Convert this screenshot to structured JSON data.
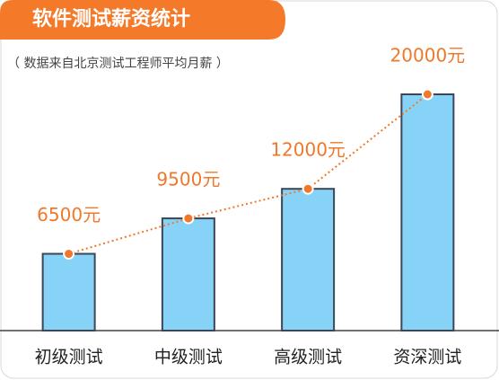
{
  "chart_data": {
    "type": "bar",
    "title": "软件测试薪资统计",
    "subtitle": "（ 数据来自北京测试工程师平均月薪 ）",
    "categories": [
      "初级测试",
      "中级测试",
      "高级测试",
      "资深测试"
    ],
    "values": [
      6500,
      9500,
      12000,
      20000
    ],
    "value_labels": [
      "6500元",
      "9500元",
      "12000元",
      "20000元"
    ],
    "color": "#86d3f7",
    "line_color": "#f0782a"
  }
}
